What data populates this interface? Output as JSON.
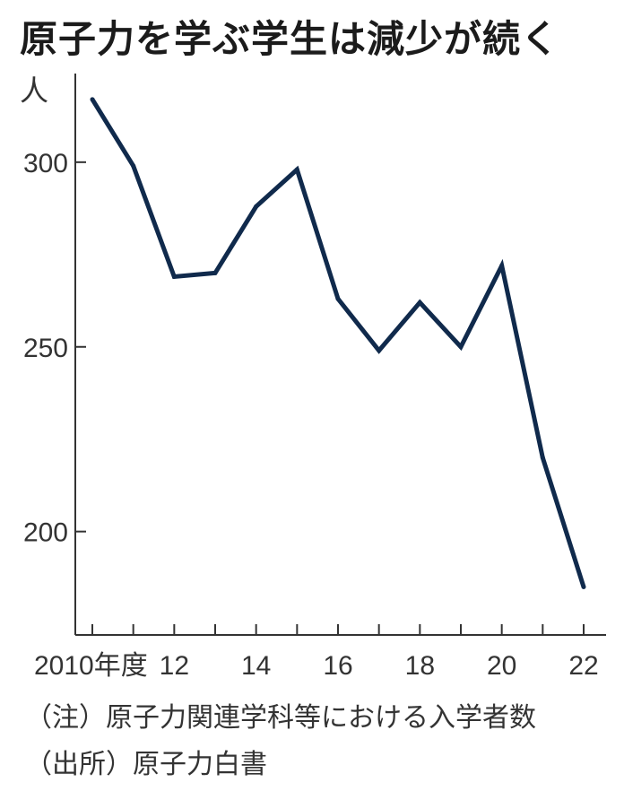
{
  "chart_data": {
    "type": "line",
    "title": "原子力を学ぶ学生は減少が続く",
    "ylabel": "人",
    "x": [
      2010,
      2011,
      2012,
      2013,
      2014,
      2015,
      2016,
      2017,
      2018,
      2019,
      2020,
      2021,
      2022
    ],
    "xtick_labels": [
      {
        "x": 2010,
        "label": "2010年度"
      },
      {
        "x": 2012,
        "label": "12"
      },
      {
        "x": 2014,
        "label": "14"
      },
      {
        "x": 2016,
        "label": "16"
      },
      {
        "x": 2018,
        "label": "18"
      },
      {
        "x": 2020,
        "label": "20"
      },
      {
        "x": 2022,
        "label": "22"
      }
    ],
    "yticks": [
      200,
      250,
      300
    ],
    "ylim": [
      172,
      324
    ],
    "series": [
      {
        "values": [
          317,
          299,
          269,
          270,
          288,
          298,
          263,
          249,
          262,
          250,
          272,
          220,
          185
        ]
      }
    ],
    "grid": false,
    "line_color": "#102a4c"
  },
  "notes": {
    "note": "（注）原子力関連学科等における入学者数",
    "source": "（出所）原子力白書"
  }
}
